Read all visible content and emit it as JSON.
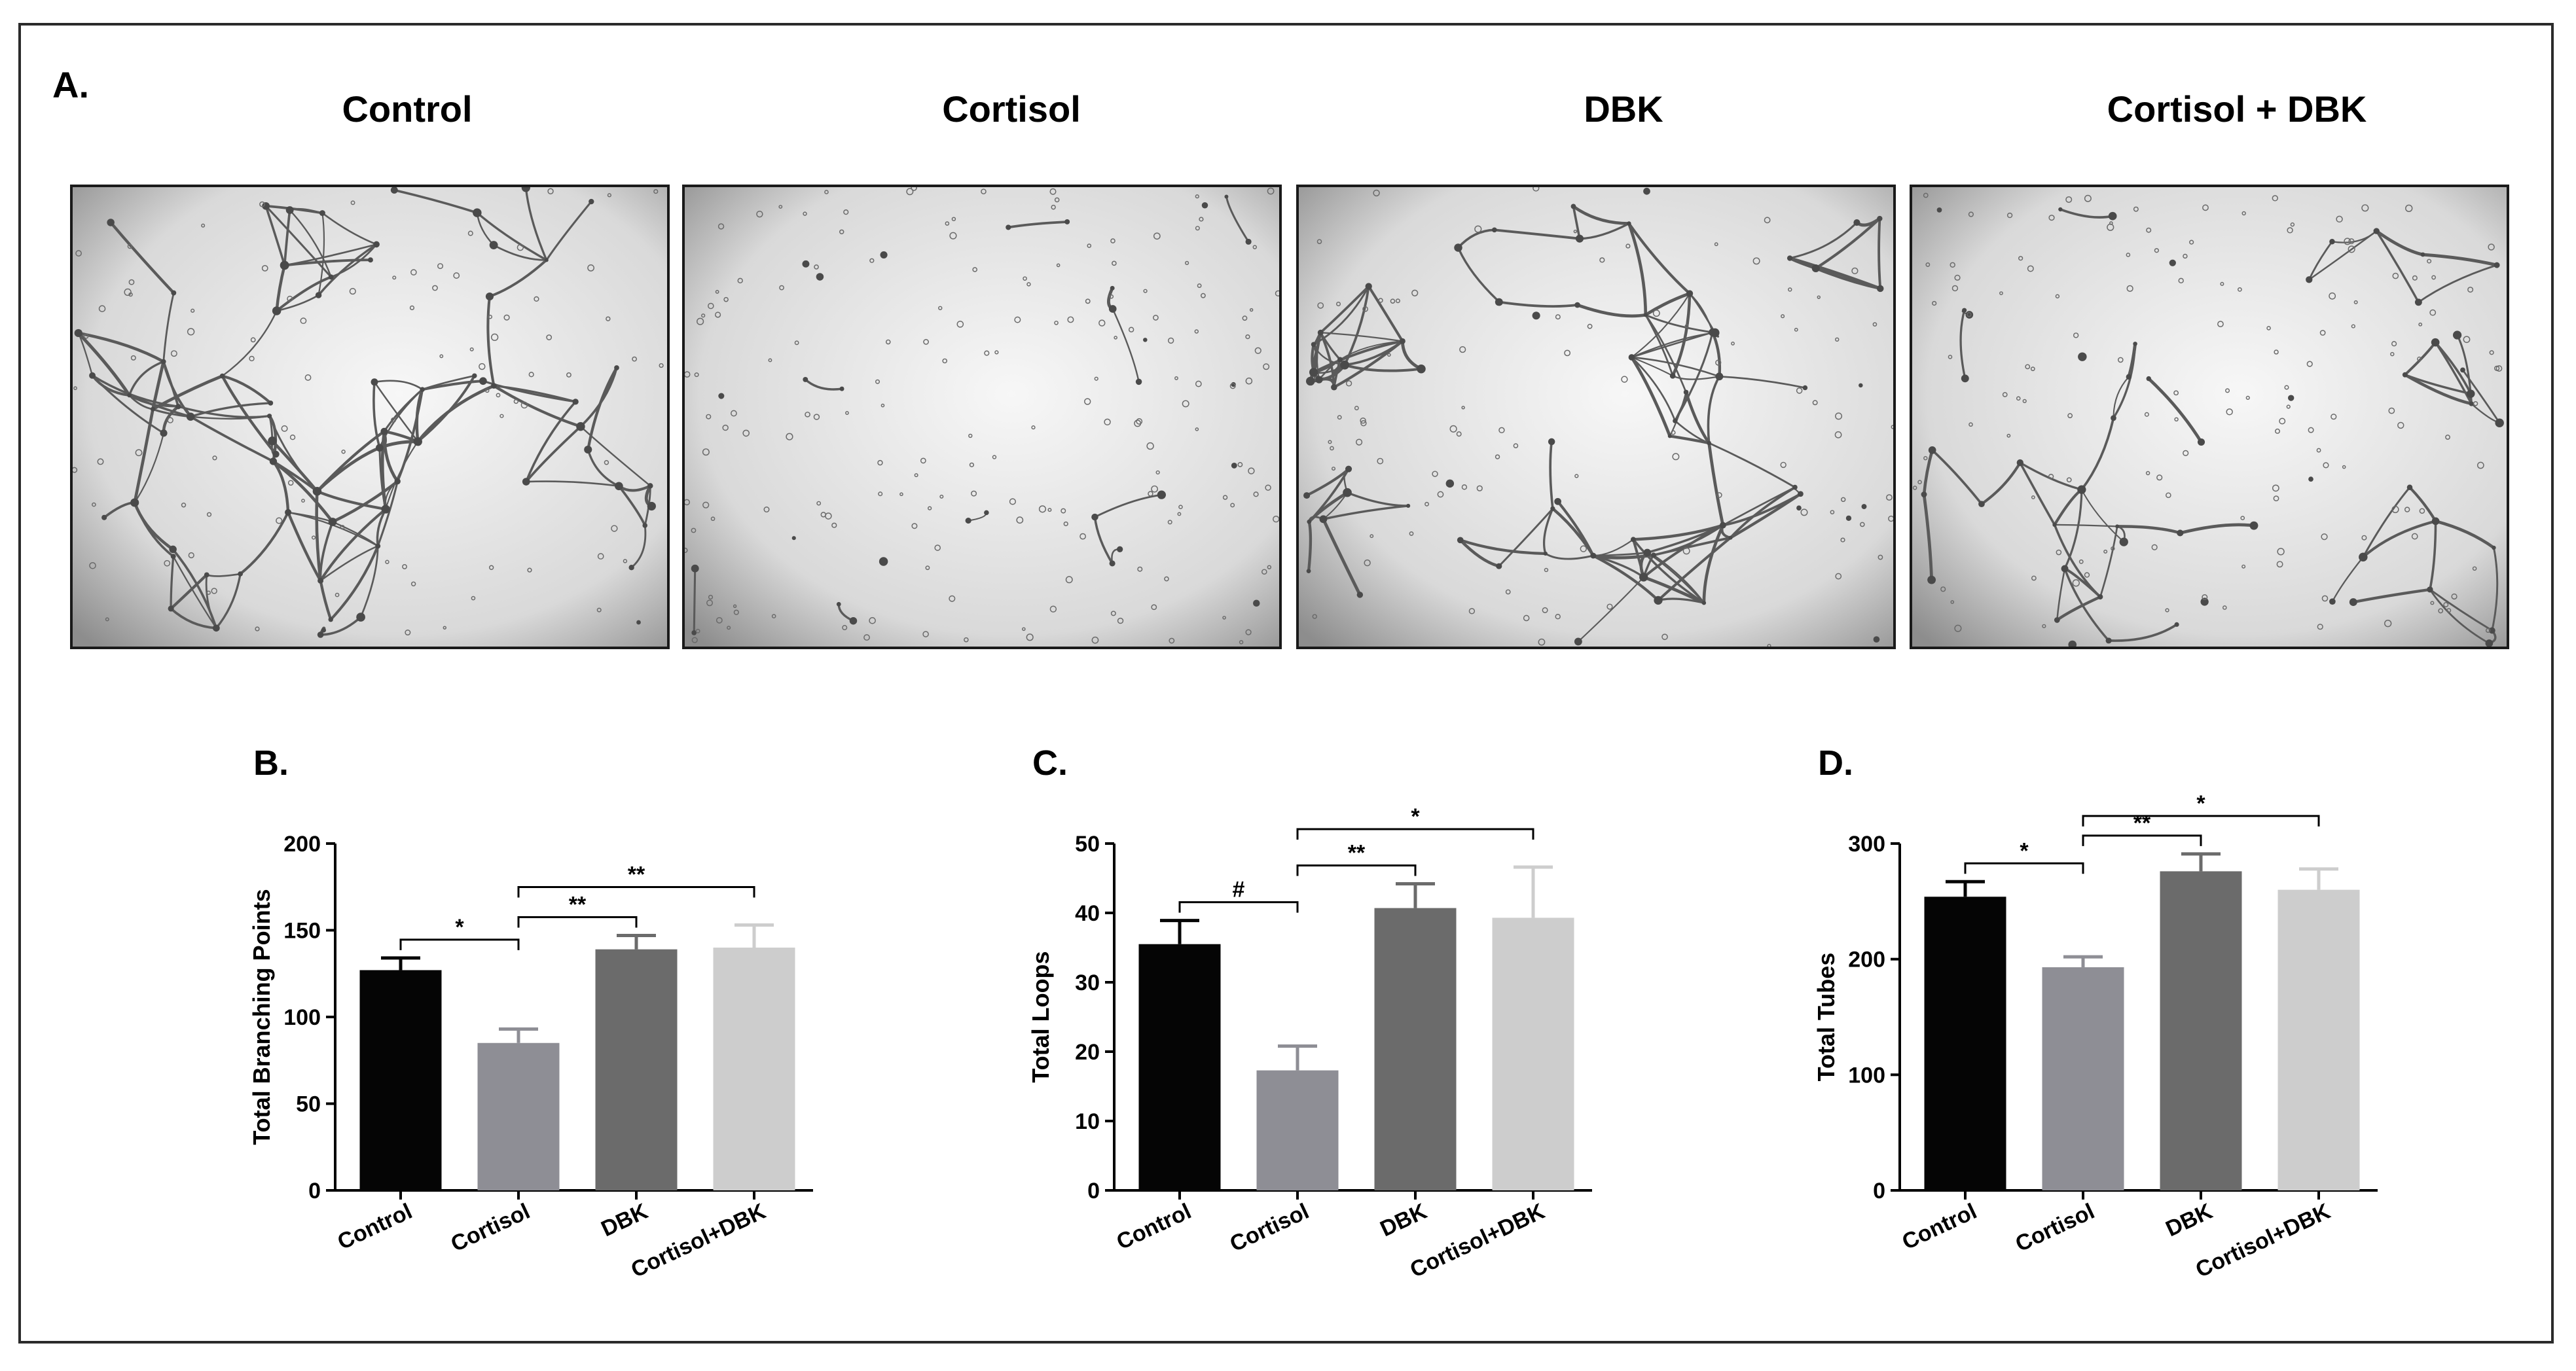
{
  "panel_a": {
    "letter": "A.",
    "images": [
      {
        "title": "Control",
        "density": "dense"
      },
      {
        "title": "Cortisol",
        "density": "sparse"
      },
      {
        "title": "DBK",
        "density": "dense"
      },
      {
        "title": "Cortisol + DBK",
        "density": "medium"
      }
    ]
  },
  "chart_data": [
    {
      "panel": "B.",
      "type": "bar",
      "ylabel": "Total Branching Points",
      "ylim": [
        0,
        200
      ],
      "yticks": [
        0,
        50,
        100,
        150,
        200
      ],
      "categories": [
        "Control",
        "Cortisol",
        "DBK",
        "Cortisol+DBK"
      ],
      "values": [
        127,
        85,
        139,
        140
      ],
      "errors": [
        7,
        8,
        8,
        13
      ],
      "colors": [
        "#050505",
        "#8e8e95",
        "#6b6b6b",
        "#cdcdcd"
      ],
      "brackets": [
        {
          "from": 0,
          "to": 1,
          "label": "*"
        },
        {
          "from": 1,
          "to": 2,
          "label": "**"
        },
        {
          "from": 1,
          "to": 3,
          "label": "**"
        }
      ]
    },
    {
      "panel": "C.",
      "type": "bar",
      "ylabel": "Total Loops",
      "ylim": [
        0,
        50
      ],
      "yticks": [
        0,
        10,
        20,
        30,
        40,
        50
      ],
      "categories": [
        "Control",
        "Cortisol",
        "DBK",
        "Cortisol+DBK"
      ],
      "values": [
        35.5,
        17.3,
        40.7,
        39.3
      ],
      "errors": [
        3.4,
        3.5,
        3.5,
        7.3
      ],
      "colors": [
        "#050505",
        "#8e8e95",
        "#6b6b6b",
        "#cdcdcd"
      ],
      "brackets": [
        {
          "from": 0,
          "to": 1,
          "label": "#"
        },
        {
          "from": 1,
          "to": 2,
          "label": "**"
        },
        {
          "from": 1,
          "to": 3,
          "label": "*"
        }
      ]
    },
    {
      "panel": "D.",
      "type": "bar",
      "ylabel": "Total Tubes",
      "ylim": [
        0,
        300
      ],
      "yticks": [
        0,
        100,
        200,
        300
      ],
      "categories": [
        "Control",
        "Cortisol",
        "DBK",
        "Cortisol+DBK"
      ],
      "values": [
        254,
        193,
        276,
        260
      ],
      "errors": [
        13,
        9,
        15,
        18
      ],
      "colors": [
        "#050505",
        "#8e8e95",
        "#6b6b6b",
        "#cdcdcd"
      ],
      "brackets": [
        {
          "from": 0,
          "to": 1,
          "label": "*"
        },
        {
          "from": 1,
          "to": 2,
          "label": "**"
        },
        {
          "from": 1,
          "to": 3,
          "label": "*"
        }
      ]
    }
  ]
}
